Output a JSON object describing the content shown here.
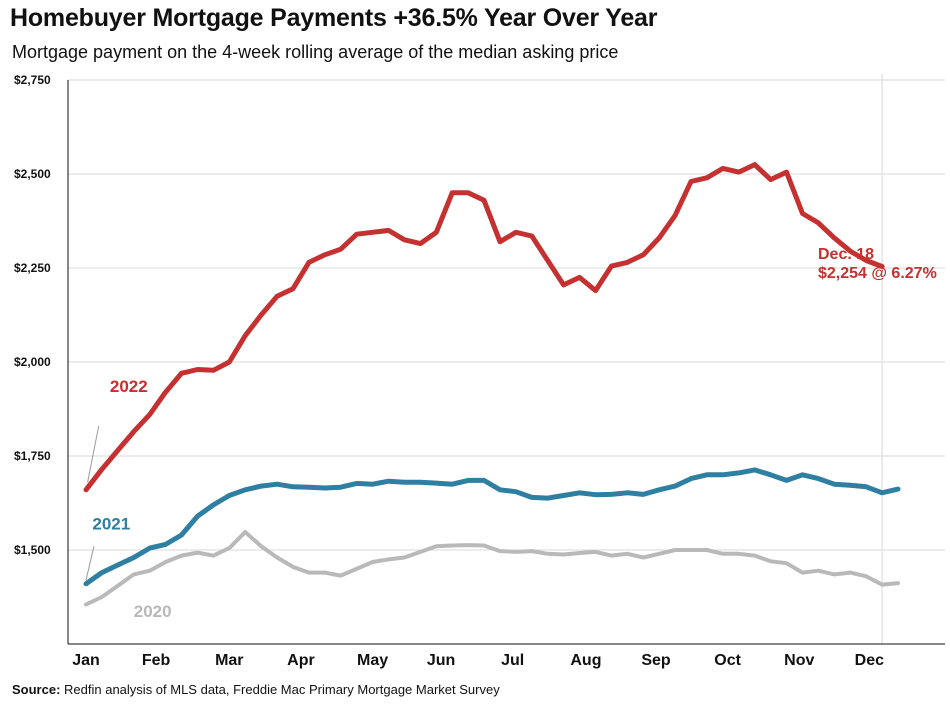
{
  "header": {
    "title": "Homebuyer Mortgage Payments +36.5% Year Over Year",
    "subtitle": "Mortgage payment on the 4-week rolling average of the median asking price"
  },
  "source": {
    "label": "Source:",
    "text": "Redfin analysis of MLS data, Freddie Mac Primary Mortgage Market Survey"
  },
  "annotation": {
    "line1": "Dec. 18",
    "line2": "$2,254 @ 6.27%"
  },
  "colors": {
    "s2022": "#c53030",
    "s2021": "#2e7fa2",
    "s2020": "#b9b9b9",
    "grid": "#d9d9d9",
    "axis": "#111111"
  },
  "chart_data": {
    "type": "line",
    "x_axis": "week",
    "xlim": [
      1,
      52
    ],
    "ylim": [
      1250,
      2750
    ],
    "y_ticks": [
      1500,
      1750,
      2000,
      2250,
      2500,
      2750
    ],
    "y_tick_labels": [
      "$1,500",
      "$1,750",
      "$2,000",
      "$2,250",
      "$2,500",
      "$2,750"
    ],
    "months": [
      "Jan",
      "Feb",
      "Mar",
      "Apr",
      "May",
      "Jun",
      "Jul",
      "Aug",
      "Sep",
      "Oct",
      "Nov",
      "Dec"
    ],
    "month_weeks": [
      1,
      5.4,
      10,
      14.5,
      19,
      23.3,
      27.8,
      32.4,
      36.8,
      41.3,
      45.8,
      50.2
    ],
    "reference_week": 51,
    "grid": true,
    "series": [
      {
        "name": "2022",
        "color_key": "s2022",
        "width": 5,
        "label_week": 2.5,
        "label_value": 1920,
        "leader": [
          [
            1.8,
            1830
          ],
          [
            1.1,
            1680
          ]
        ],
        "points": [
          [
            1,
            1660
          ],
          [
            2,
            1715
          ],
          [
            3,
            1765
          ],
          [
            4,
            1815
          ],
          [
            5,
            1860
          ],
          [
            6,
            1920
          ],
          [
            7,
            1970
          ],
          [
            8,
            1980
          ],
          [
            9,
            1978
          ],
          [
            10,
            2000
          ],
          [
            11,
            2070
          ],
          [
            12,
            2125
          ],
          [
            13,
            2175
          ],
          [
            14,
            2195
          ],
          [
            15,
            2265
          ],
          [
            16,
            2285
          ],
          [
            17,
            2300
          ],
          [
            18,
            2340
          ],
          [
            19,
            2345
          ],
          [
            20,
            2350
          ],
          [
            21,
            2325
          ],
          [
            22,
            2315
          ],
          [
            23,
            2345
          ],
          [
            24,
            2450
          ],
          [
            25,
            2450
          ],
          [
            26,
            2430
          ],
          [
            27,
            2320
          ],
          [
            28,
            2345
          ],
          [
            29,
            2335
          ],
          [
            30,
            2270
          ],
          [
            31,
            2205
          ],
          [
            32,
            2225
          ],
          [
            33,
            2190
          ],
          [
            34,
            2255
          ],
          [
            35,
            2265
          ],
          [
            36,
            2285
          ],
          [
            37,
            2330
          ],
          [
            38,
            2390
          ],
          [
            39,
            2480
          ],
          [
            40,
            2490
          ],
          [
            41,
            2515
          ],
          [
            42,
            2505
          ],
          [
            43,
            2525
          ],
          [
            44,
            2485
          ],
          [
            45,
            2505
          ],
          [
            46,
            2395
          ],
          [
            47,
            2370
          ],
          [
            48,
            2330
          ],
          [
            49,
            2295
          ],
          [
            50,
            2270
          ],
          [
            51,
            2254
          ]
        ]
      },
      {
        "name": "2021",
        "color_key": "s2021",
        "width": 5,
        "label_week": 1.4,
        "label_value": 1555,
        "leader": [
          [
            1.5,
            1510
          ],
          [
            1,
            1420
          ]
        ],
        "points": [
          [
            1,
            1410
          ],
          [
            2,
            1440
          ],
          [
            3,
            1460
          ],
          [
            4,
            1480
          ],
          [
            5,
            1505
          ],
          [
            6,
            1515
          ],
          [
            7,
            1540
          ],
          [
            8,
            1590
          ],
          [
            9,
            1620
          ],
          [
            10,
            1645
          ],
          [
            11,
            1660
          ],
          [
            12,
            1670
          ],
          [
            13,
            1675
          ],
          [
            14,
            1668
          ],
          [
            15,
            1667
          ],
          [
            16,
            1665
          ],
          [
            17,
            1667
          ],
          [
            18,
            1677
          ],
          [
            19,
            1675
          ],
          [
            20,
            1683
          ],
          [
            21,
            1680
          ],
          [
            22,
            1680
          ],
          [
            23,
            1678
          ],
          [
            24,
            1675
          ],
          [
            25,
            1685
          ],
          [
            26,
            1685
          ],
          [
            27,
            1660
          ],
          [
            28,
            1655
          ],
          [
            29,
            1640
          ],
          [
            30,
            1638
          ],
          [
            31,
            1645
          ],
          [
            32,
            1652
          ],
          [
            33,
            1647
          ],
          [
            34,
            1648
          ],
          [
            35,
            1652
          ],
          [
            36,
            1648
          ],
          [
            37,
            1660
          ],
          [
            38,
            1670
          ],
          [
            39,
            1690
          ],
          [
            40,
            1700
          ],
          [
            41,
            1700
          ],
          [
            42,
            1705
          ],
          [
            43,
            1713
          ],
          [
            44,
            1700
          ],
          [
            45,
            1685
          ],
          [
            46,
            1700
          ],
          [
            47,
            1690
          ],
          [
            48,
            1675
          ],
          [
            49,
            1672
          ],
          [
            50,
            1668
          ],
          [
            51,
            1652
          ],
          [
            52,
            1662
          ]
        ]
      },
      {
        "name": "2020",
        "color_key": "s2020",
        "width": 4,
        "label_week": 4,
        "label_value": 1322,
        "leader": [],
        "points": [
          [
            1,
            1355
          ],
          [
            2,
            1375
          ],
          [
            3,
            1405
          ],
          [
            4,
            1435
          ],
          [
            5,
            1445
          ],
          [
            6,
            1468
          ],
          [
            7,
            1485
          ],
          [
            8,
            1493
          ],
          [
            9,
            1485
          ],
          [
            10,
            1505
          ],
          [
            11,
            1548
          ],
          [
            12,
            1510
          ],
          [
            13,
            1480
          ],
          [
            14,
            1455
          ],
          [
            15,
            1440
          ],
          [
            16,
            1440
          ],
          [
            17,
            1432
          ],
          [
            18,
            1450
          ],
          [
            19,
            1468
          ],
          [
            20,
            1475
          ],
          [
            21,
            1480
          ],
          [
            22,
            1495
          ],
          [
            23,
            1510
          ],
          [
            24,
            1512
          ],
          [
            25,
            1513
          ],
          [
            26,
            1512
          ],
          [
            27,
            1497
          ],
          [
            28,
            1495
          ],
          [
            29,
            1497
          ],
          [
            30,
            1490
          ],
          [
            31,
            1488
          ],
          [
            32,
            1492
          ],
          [
            33,
            1495
          ],
          [
            34,
            1485
          ],
          [
            35,
            1490
          ],
          [
            36,
            1480
          ],
          [
            37,
            1490
          ],
          [
            38,
            1500
          ],
          [
            39,
            1500
          ],
          [
            40,
            1500
          ],
          [
            41,
            1490
          ],
          [
            42,
            1490
          ],
          [
            43,
            1485
          ],
          [
            44,
            1470
          ],
          [
            45,
            1465
          ],
          [
            46,
            1440
          ],
          [
            47,
            1445
          ],
          [
            48,
            1435
          ],
          [
            49,
            1440
          ],
          [
            50,
            1430
          ],
          [
            51,
            1408
          ],
          [
            52,
            1412
          ]
        ]
      }
    ]
  }
}
